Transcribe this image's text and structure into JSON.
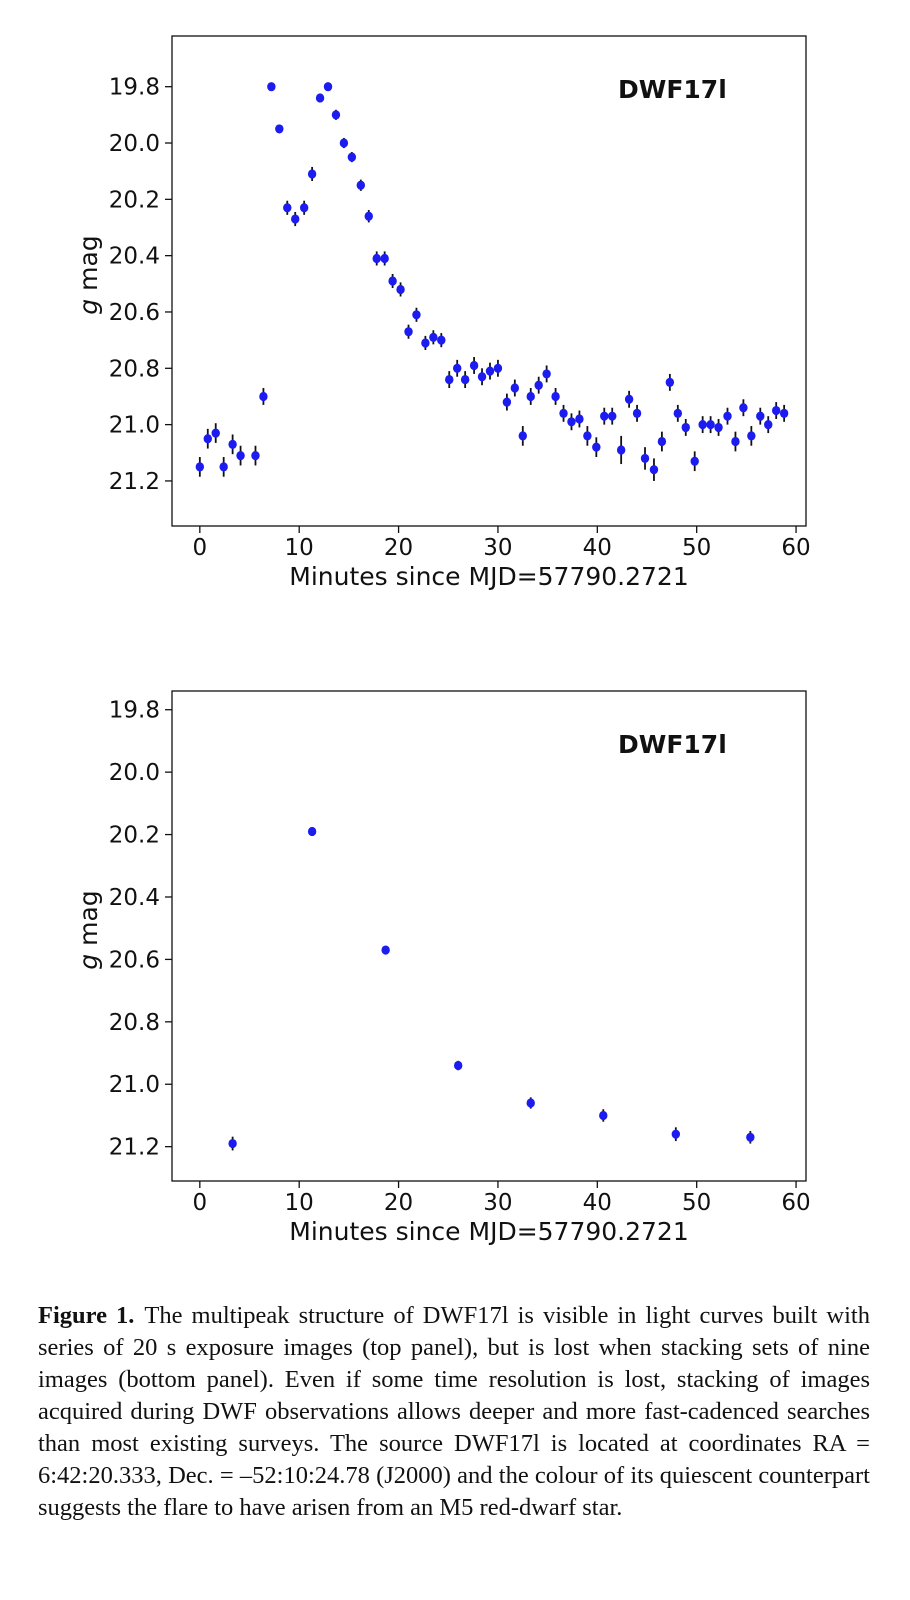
{
  "chart_data": [
    {
      "type": "scatter",
      "panel": "top",
      "annotation": "DWF17l",
      "xlabel": "Minutes since MJD=57790.2721",
      "ylabel": "g mag",
      "xlim": [
        -2.8,
        61
      ],
      "ylim": [
        21.36,
        19.62
      ],
      "y_inverted": true,
      "xticks": [
        0,
        10,
        20,
        30,
        40,
        50,
        60
      ],
      "yticks": [
        19.8,
        20.0,
        20.2,
        20.4,
        20.6,
        20.8,
        21.0,
        21.2
      ],
      "ytick_labels": [
        "19.8",
        "20.0",
        "20.2",
        "20.4",
        "20.6",
        "20.8",
        "21.0",
        "21.2"
      ],
      "marker_color": "#1c1cf0",
      "errorbar_color": "#111111",
      "x": [
        0.0,
        0.8,
        1.6,
        2.4,
        3.3,
        4.1,
        5.6,
        6.4,
        7.2,
        8.0,
        8.8,
        9.6,
        10.5,
        11.3,
        12.1,
        12.9,
        13.7,
        14.5,
        15.3,
        16.2,
        17.0,
        17.8,
        18.6,
        19.4,
        20.2,
        21.0,
        21.8,
        22.7,
        23.5,
        24.3,
        25.1,
        25.9,
        26.7,
        27.6,
        28.4,
        29.2,
        30.0,
        30.9,
        31.7,
        32.5,
        33.3,
        34.1,
        34.9,
        35.8,
        36.6,
        37.4,
        38.2,
        39.0,
        39.9,
        40.7,
        41.5,
        42.4,
        43.2,
        44.0,
        44.8,
        45.7,
        46.5,
        47.3,
        48.1,
        48.9,
        49.8,
        50.6,
        51.4,
        52.2,
        53.1,
        53.9,
        54.7,
        55.5,
        56.4,
        57.2,
        58.0,
        58.8
      ],
      "y": [
        21.15,
        21.05,
        21.03,
        21.15,
        21.07,
        21.11,
        21.11,
        20.9,
        19.8,
        19.95,
        20.23,
        20.27,
        20.23,
        20.11,
        19.84,
        19.8,
        19.9,
        20.0,
        20.05,
        20.15,
        20.26,
        20.41,
        20.41,
        20.49,
        20.52,
        20.67,
        20.61,
        20.71,
        20.69,
        20.7,
        20.84,
        20.8,
        20.84,
        20.79,
        20.83,
        20.81,
        20.8,
        20.92,
        20.87,
        21.04,
        20.9,
        20.86,
        20.82,
        20.9,
        20.96,
        20.99,
        20.98,
        21.04,
        21.08,
        20.97,
        20.97,
        21.09,
        20.91,
        20.96,
        21.12,
        21.16,
        21.06,
        20.85,
        20.96,
        21.01,
        21.13,
        21.0,
        21.0,
        21.01,
        20.97,
        21.06,
        20.94,
        21.04,
        20.97,
        21.0,
        20.95,
        20.96
      ],
      "yerr": [
        0.035,
        0.035,
        0.035,
        0.035,
        0.035,
        0.035,
        0.035,
        0.03,
        0.012,
        0.012,
        0.025,
        0.025,
        0.025,
        0.025,
        0.015,
        0.012,
        0.018,
        0.018,
        0.018,
        0.02,
        0.022,
        0.025,
        0.025,
        0.025,
        0.025,
        0.025,
        0.025,
        0.025,
        0.025,
        0.025,
        0.03,
        0.03,
        0.03,
        0.03,
        0.03,
        0.03,
        0.03,
        0.03,
        0.03,
        0.035,
        0.03,
        0.03,
        0.03,
        0.03,
        0.03,
        0.03,
        0.03,
        0.035,
        0.035,
        0.03,
        0.03,
        0.05,
        0.03,
        0.03,
        0.04,
        0.04,
        0.035,
        0.03,
        0.03,
        0.03,
        0.035,
        0.03,
        0.03,
        0.03,
        0.03,
        0.035,
        0.03,
        0.035,
        0.03,
        0.03,
        0.03,
        0.03
      ]
    },
    {
      "type": "scatter",
      "panel": "bottom",
      "annotation": "DWF17l",
      "xlabel": "Minutes since MJD=57790.2721",
      "ylabel": "g mag",
      "xlim": [
        -2.8,
        61
      ],
      "ylim": [
        21.31,
        19.74
      ],
      "y_inverted": true,
      "xticks": [
        0,
        10,
        20,
        30,
        40,
        50,
        60
      ],
      "yticks": [
        19.8,
        20.0,
        20.2,
        20.4,
        20.6,
        20.8,
        21.0,
        21.2
      ],
      "ytick_labels": [
        "19.8",
        "20.0",
        "20.2",
        "20.4",
        "20.6",
        "20.8",
        "21.0",
        "21.2"
      ],
      "marker_color": "#1c1cf0",
      "errorbar_color": "#111111",
      "x": [
        3.3,
        11.3,
        18.7,
        26.0,
        33.3,
        40.6,
        47.9,
        55.4
      ],
      "y": [
        21.19,
        20.19,
        20.57,
        20.94,
        21.06,
        21.1,
        21.16,
        21.17
      ],
      "yerr": [
        0.022,
        0.01,
        0.01,
        0.015,
        0.018,
        0.02,
        0.022,
        0.02
      ]
    }
  ],
  "caption": {
    "label": "Figure 1.",
    "text": "The multipeak structure of DWF17l is visible in light curves built with series of 20 s exposure images (top panel), but is lost when stacking sets of nine images (bottom panel). Even if some time resolution is lost, stacking of images acquired during DWF observations allows deeper and more fast-cadenced searches than most existing surveys. The source DWF17l is located at coordinates RA = 6:42:20.333, Dec. = –52:10:24.78 (J2000) and the colour of its quiescent counterpart suggests the flare to have arisen from an M5 red-dwarf star."
  }
}
